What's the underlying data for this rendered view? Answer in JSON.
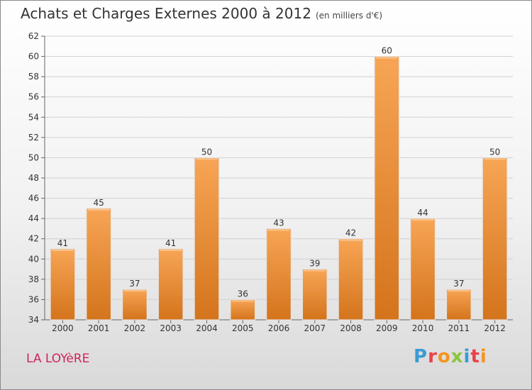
{
  "header": {
    "title": "Achats et Charges Externes 2000 à 2012",
    "subtitle": "(en milliers d'€)"
  },
  "location": "LA LOYèRE",
  "brand": {
    "name": "Proxiti",
    "letters": [
      {
        "char": "P",
        "color": "#3a9bd5"
      },
      {
        "char": "r",
        "color": "#e8424a"
      },
      {
        "char": "o",
        "color": "#f7941d"
      },
      {
        "char": "x",
        "color": "#8cc63f"
      },
      {
        "char": "i",
        "color": "#3a9bd5"
      },
      {
        "char": "t",
        "color": "#e8424a"
      },
      {
        "char": "i",
        "color": "#f7941d"
      }
    ]
  },
  "colors": {
    "bar_light": "#f7a555",
    "bar_dark": "#d4741c",
    "grid": "#d0d0d0",
    "location": "#d0245a"
  },
  "chart_data": {
    "type": "bar",
    "title": "Achats et Charges Externes 2000 à 2012",
    "subtitle": "(en milliers d'€)",
    "categories": [
      "2000",
      "2001",
      "2002",
      "2003",
      "2004",
      "2005",
      "2006",
      "2007",
      "2008",
      "2009",
      "2010",
      "2011",
      "2012"
    ],
    "values": [
      41,
      45,
      37,
      41,
      50,
      36,
      43,
      39,
      42,
      60,
      44,
      37,
      50
    ],
    "ylim": [
      34,
      62
    ],
    "yticks": [
      34,
      36,
      38,
      40,
      42,
      44,
      46,
      48,
      50,
      52,
      54,
      56,
      58,
      60,
      62
    ],
    "grid": true,
    "xlabel": "",
    "ylabel": ""
  }
}
